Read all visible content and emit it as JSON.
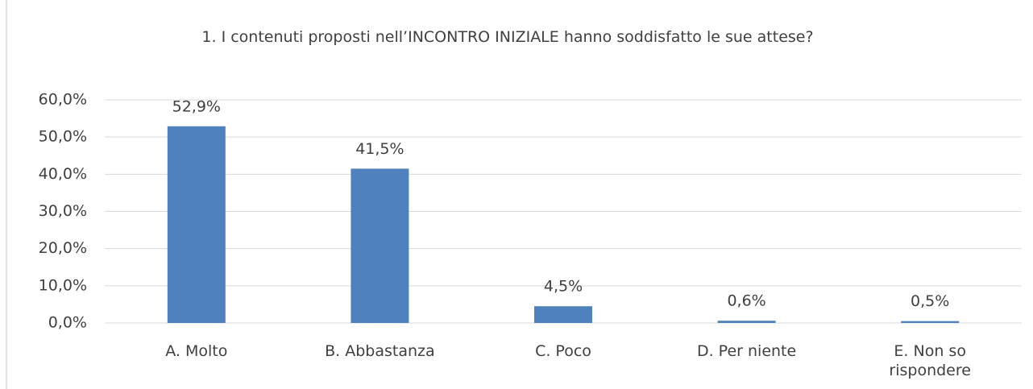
{
  "chart_data": {
    "type": "bar",
    "title": "1.   I contenuti  proposti  nell’INCONTRO INIZIALE hanno soddisfatto le sue attese?",
    "categories": [
      "A. Molto",
      "B. Abbastanza",
      "C. Poco",
      "D. Per niente",
      "E. Non so rispondere"
    ],
    "values": [
      52.9,
      41.5,
      4.5,
      0.6,
      0.5
    ],
    "value_labels": [
      "52,9%",
      "41,5%",
      "4,5%",
      "0,6%",
      "0,5%"
    ],
    "color": "#4f81bd",
    "ylim": [
      0,
      60
    ],
    "yticks": [
      {
        "value": 0,
        "label": "0,0%"
      },
      {
        "value": 10,
        "label": "10,0%"
      },
      {
        "value": 20,
        "label": "20,0%"
      },
      {
        "value": 30,
        "label": "30,0%"
      },
      {
        "value": 40,
        "label": "40,0%"
      },
      {
        "value": 50,
        "label": "50,0%"
      },
      {
        "value": 60,
        "label": "60,0%"
      }
    ],
    "grid": true
  }
}
